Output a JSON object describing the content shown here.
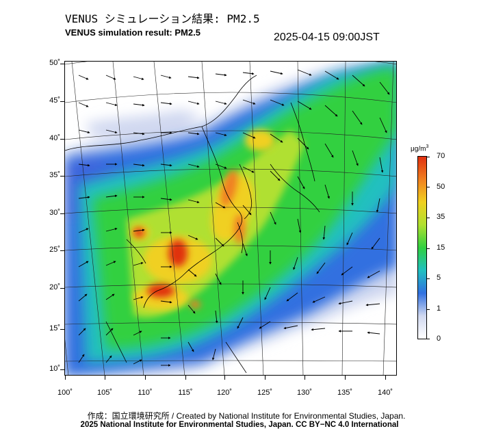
{
  "header": {
    "title_jp": "VENUS シミュレーション結果: PM2.5",
    "title_en": "VENUS simulation result: PM2.5",
    "timestamp": "2025-04-15 09:00JST"
  },
  "map": {
    "lat_labels": [
      "50˚",
      "45˚",
      "40˚",
      "35˚",
      "30˚",
      "25˚",
      "20˚",
      "15˚",
      "10˚"
    ],
    "lon_labels": [
      "100˚",
      "105˚",
      "110˚",
      "115˚",
      "120˚",
      "125˚",
      "130˚",
      "135˚",
      "140˚"
    ],
    "field": "PM2.5 concentration with wind vectors"
  },
  "colorbar": {
    "unit": "μg/m",
    "unit_sup": "3",
    "labels": [
      "70",
      "50",
      "35",
      "15",
      "5",
      "1",
      "0"
    ],
    "colors": [
      "#e03010",
      "#f08020",
      "#f0d020",
      "#b0e030",
      "#30d040",
      "#20c0c0",
      "#3070e0",
      "#d0d8f0",
      "#ffffff"
    ]
  },
  "credits": {
    "line1": "作成：国立環境研究所 / Created by National Institute for Environmental Studies, Japan.",
    "line2": "2025 National Institute for Environmental Studies, Japan. CC BY−NC 4.0 International"
  }
}
